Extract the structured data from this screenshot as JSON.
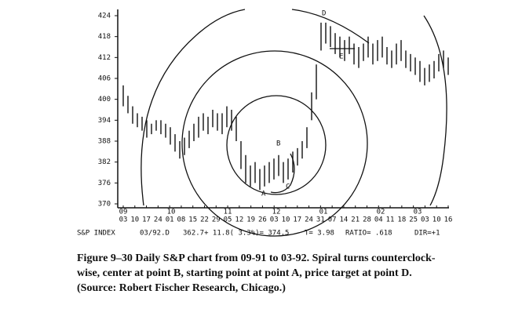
{
  "chart_data": {
    "type": "range_bar",
    "ylim": [
      370,
      424
    ],
    "yticks": [
      370,
      376,
      382,
      388,
      394,
      400,
      406,
      412,
      418,
      424
    ],
    "months": [
      "09",
      "10",
      "11",
      "12",
      "01",
      "02",
      "03"
    ],
    "days": [
      "03",
      "10",
      "17",
      "24",
      "01",
      "08",
      "15",
      "22",
      "29",
      "05",
      "12",
      "19",
      "26",
      "03",
      "10",
      "17",
      "24",
      "31",
      "07",
      "14",
      "21",
      "28",
      "04",
      "11",
      "18",
      "25",
      "03",
      "10",
      "16"
    ],
    "lows": [
      398,
      396,
      393,
      392,
      391,
      389,
      390,
      391,
      390,
      389,
      387,
      385,
      383,
      384,
      386,
      388,
      389,
      391,
      390,
      392,
      391,
      390,
      392,
      391,
      388,
      380,
      376,
      375,
      376,
      374,
      375,
      376,
      377,
      378,
      376,
      377,
      379,
      381,
      383,
      386,
      394,
      400,
      414,
      416,
      415,
      413,
      412,
      411,
      413,
      410,
      409,
      411,
      412,
      410,
      411,
      412,
      410,
      409,
      410,
      411,
      409,
      408,
      407,
      405,
      404,
      405,
      406,
      408,
      409,
      407
    ],
    "highs": [
      404,
      401,
      398,
      396,
      395,
      394,
      393,
      394,
      394,
      393,
      392,
      390,
      388,
      389,
      391,
      393,
      395,
      396,
      395,
      397,
      396,
      396,
      398,
      397,
      395,
      388,
      384,
      381,
      382,
      380,
      381,
      382,
      383,
      384,
      382,
      383,
      385,
      386,
      388,
      392,
      402,
      410,
      422,
      422,
      421,
      419,
      418,
      417,
      418,
      416,
      415,
      416,
      418,
      416,
      417,
      418,
      415,
      414,
      416,
      417,
      414,
      413,
      412,
      411,
      409,
      410,
      411,
      413,
      414,
      412
    ],
    "annotations": [
      "A",
      "B",
      "C",
      "D",
      "E"
    ],
    "footer": [
      "S&P INDEX",
      "03/92.D",
      "362.7+ 11.8( 3.3%)= 374.5",
      "T= 3.98",
      "RATIO= .618",
      "DIR=+1"
    ],
    "caption": [
      "Figure 9–30   Daily S&P chart from 09-91 to 03-92. Spiral turns counterclock-",
      "wise, center at point B, starting point at point A, price target at point D.",
      "(Source:  Robert Fischer Research, Chicago.)"
    ],
    "color": "#111111"
  }
}
